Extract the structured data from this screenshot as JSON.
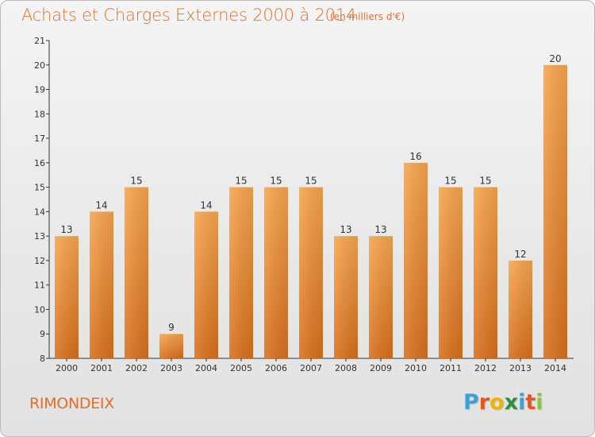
{
  "header": {
    "title": "Achats et Charges Externes 2000 à 2014",
    "subtitle": "(en milliers d'€)"
  },
  "footer": {
    "commune": "RIMONDEIX",
    "logo": {
      "letters": [
        "P",
        "r",
        "o",
        "x",
        "i",
        "t",
        "i"
      ],
      "colors": [
        "#3aa0d8",
        "#e8551f",
        "#f0b400",
        "#2f8f3f",
        "#3aa0d8",
        "#e8551f",
        "#8bc43f"
      ]
    }
  },
  "colors": {
    "accent": "#e0702a",
    "bar_top": "#f7a54e",
    "bar_bottom": "#d86f1c",
    "axis": "#333333"
  },
  "chart_data": {
    "type": "bar",
    "categories": [
      "2000",
      "2001",
      "2002",
      "2003",
      "2004",
      "2005",
      "2006",
      "2007",
      "2008",
      "2009",
      "2010",
      "2011",
      "2012",
      "2013",
      "2014"
    ],
    "values": [
      13,
      14,
      15,
      9,
      14,
      15,
      15,
      15,
      13,
      13,
      16,
      15,
      15,
      12,
      20
    ],
    "value_labels": [
      "13",
      "14",
      "15",
      "9",
      "14",
      "15",
      "15",
      "15",
      "13",
      "13",
      "16",
      "15",
      "15",
      "12",
      "20"
    ],
    "yticks": [
      "8",
      "9",
      "10",
      "11",
      "12",
      "13",
      "14",
      "15",
      "16",
      "17",
      "18",
      "19",
      "20",
      "21"
    ],
    "ylim": [
      8,
      21
    ],
    "xlabel": "",
    "ylabel": "",
    "grid": false,
    "legend": "none"
  }
}
